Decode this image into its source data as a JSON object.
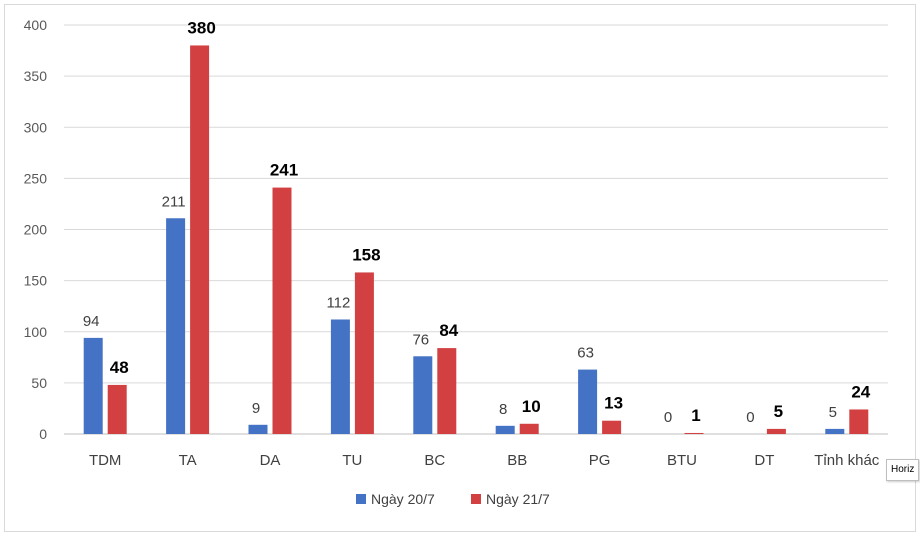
{
  "chart_data": {
    "type": "bar",
    "categories": [
      "TDM",
      "TA",
      "DA",
      "TU",
      "BC",
      "BB",
      "PG",
      "BTU",
      "DT",
      "Tỉnh khác"
    ],
    "series": [
      {
        "name": "Ngày 20/7",
        "color": "#4472c4",
        "values": [
          94,
          211,
          9,
          112,
          76,
          8,
          63,
          0,
          0,
          5
        ]
      },
      {
        "name": "Ngày 21/7",
        "color": "#d24042",
        "values": [
          48,
          380,
          241,
          158,
          84,
          10,
          13,
          1,
          5,
          24
        ]
      }
    ],
    "ylim": [
      0,
      400
    ],
    "yticks": [
      0,
      50,
      100,
      150,
      200,
      250,
      300,
      350,
      400
    ],
    "grid": true,
    "legend_position": "bottom"
  },
  "tooltip": {
    "text": "Horiz"
  }
}
